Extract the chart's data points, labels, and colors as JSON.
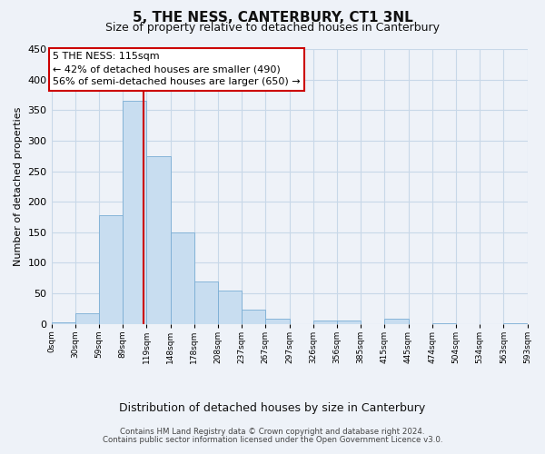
{
  "title": "5, THE NESS, CANTERBURY, CT1 3NL",
  "subtitle": "Size of property relative to detached houses in Canterbury",
  "xlabel": "Distribution of detached houses by size in Canterbury",
  "ylabel": "Number of detached properties",
  "bar_color": "#c8ddf0",
  "bar_edge_color": "#7aadd4",
  "grid_color": "#c8d8e8",
  "background_color": "#eef2f8",
  "tick_labels": [
    "0sqm",
    "30sqm",
    "59sqm",
    "89sqm",
    "119sqm",
    "148sqm",
    "178sqm",
    "208sqm",
    "237sqm",
    "267sqm",
    "297sqm",
    "326sqm",
    "356sqm",
    "385sqm",
    "415sqm",
    "445sqm",
    "474sqm",
    "504sqm",
    "534sqm",
    "563sqm",
    "593sqm"
  ],
  "bar_heights": [
    2,
    18,
    178,
    365,
    275,
    150,
    70,
    55,
    23,
    9,
    0,
    6,
    6,
    0,
    8,
    0,
    1,
    0,
    0,
    1
  ],
  "ylim": [
    0,
    450
  ],
  "yticks": [
    0,
    50,
    100,
    150,
    200,
    250,
    300,
    350,
    400,
    450
  ],
  "vline_color": "#cc0000",
  "annotation_title": "5 THE NESS: 115sqm",
  "annotation_line1": "← 42% of detached houses are smaller (490)",
  "annotation_line2": "56% of semi-detached houses are larger (650) →",
  "annotation_box_color": "#ffffff",
  "annotation_box_edge": "#cc0000",
  "footer_line1": "Contains HM Land Registry data © Crown copyright and database right 2024.",
  "footer_line2": "Contains public sector information licensed under the Open Government Licence v3.0."
}
